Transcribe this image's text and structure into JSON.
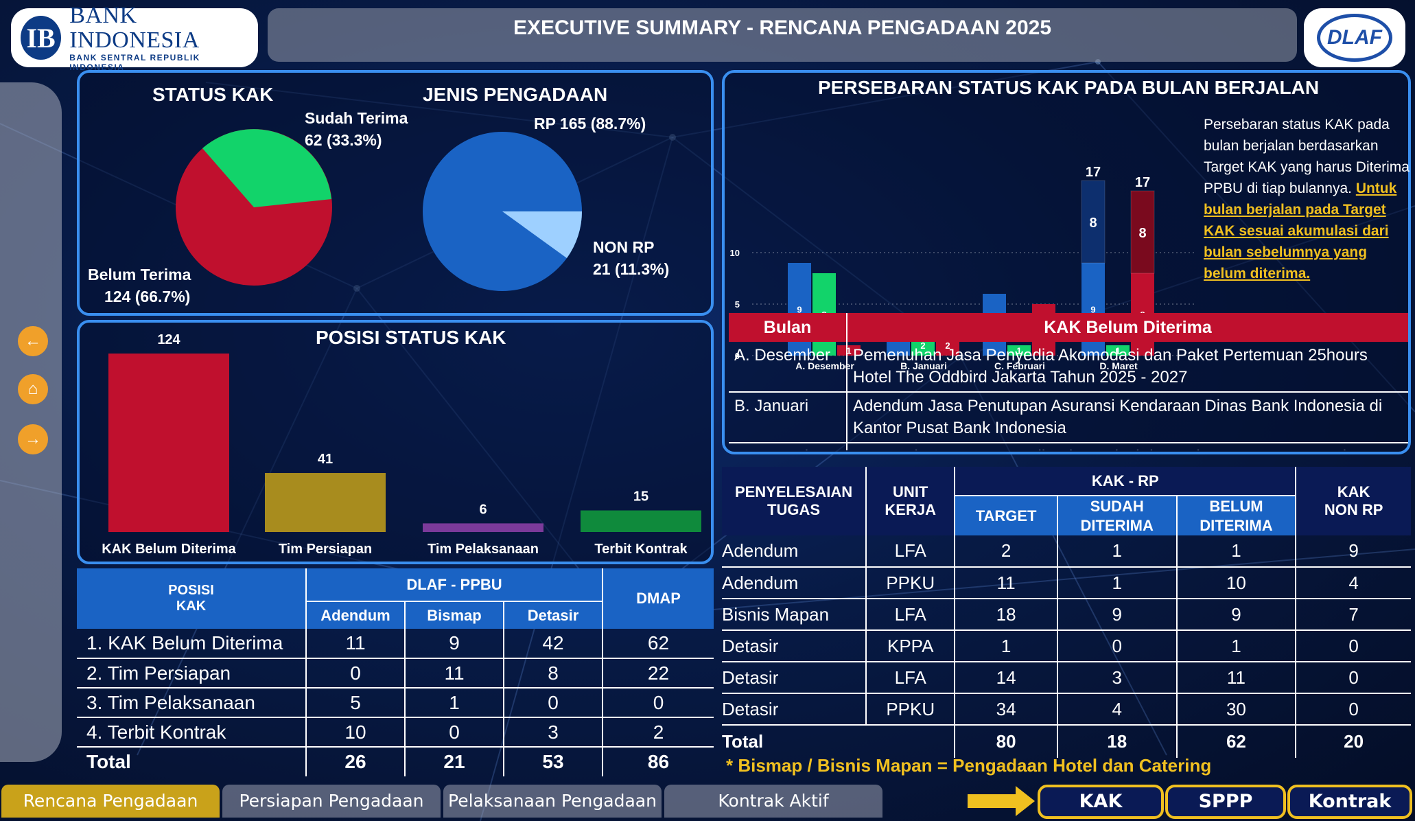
{
  "header": {
    "bank_name": "BANK INDONESIA",
    "bank_sub": "BANK SENTRAL REPUBLIK INDONESIA",
    "title": "EXECUTIVE SUMMARY - RENCANA PENGADAAN 2025",
    "dlaf_logo": "DLAF"
  },
  "nav": {
    "back_icon": "arrow-left-icon",
    "home_icon": "home-icon",
    "forward_icon": "arrow-right-icon"
  },
  "status_kak": {
    "title": "STATUS KAK",
    "sudah_label": "Sudah Terima",
    "sudah_value": "62 (33.3%)",
    "belum_label": "Belum Terima",
    "belum_value": "124 (66.7%)"
  },
  "jenis_pengadaan": {
    "title": "JENIS PENGADAAN",
    "rp_label": "RP 165 (88.7%)",
    "non_label": "NON RP",
    "non_value": "21 (11.3%)"
  },
  "posisi_status": {
    "title": "POSISI STATUS KAK",
    "bars": [
      {
        "label": "KAK Belum Diterima",
        "value": "124",
        "color": "#c0102e"
      },
      {
        "label": "Tim Persiapan",
        "value": "41",
        "color": "#a88c1e"
      },
      {
        "label": "Tim Pelaksanaan",
        "value": "6",
        "color": "#7b3a9a"
      },
      {
        "label": "Terbit Kontrak",
        "value": "15",
        "color": "#0f8a3c"
      }
    ]
  },
  "posisi_table": {
    "h_posisi": "POSISI\nKAK",
    "h_dlaf": "DLAF - PPBU",
    "h_adendum": "Adendum",
    "h_bismap": "Bismap",
    "h_detasir": "Detasir",
    "h_dmap": "DMAP",
    "rows": [
      {
        "name": "1. KAK Belum Diterima",
        "a": "11",
        "b": "9",
        "d": "42",
        "m": "62"
      },
      {
        "name": "2. Tim Persiapan",
        "a": "0",
        "b": "11",
        "d": "8",
        "m": "22"
      },
      {
        "name": "3. Tim Pelaksanaan",
        "a": "5",
        "b": "1",
        "d": "0",
        "m": "0"
      },
      {
        "name": "4. Terbit Kontrak",
        "a": "10",
        "b": "0",
        "d": "3",
        "m": "2"
      }
    ],
    "total": {
      "name": "Total",
      "a": "26",
      "b": "21",
      "d": "53",
      "m": "86"
    }
  },
  "persebaran": {
    "title": "PERSEBARAN STATUS KAK PADA BULAN BERJALAN",
    "desc_plain": "Persebaran status KAK pada bulan berjalan berdasarkan Target KAK yang harus Diterima PPBU di tiap bulannya.",
    "desc_highlight": "Untuk bulan berjalan pada Target KAK sesuai akumulasi dari bulan sebelumnya yang belum diterima."
  },
  "chart_data": {
    "type": "bar",
    "categories": [
      "A. Desember",
      "B. Januari",
      "C. Februari",
      "D. Maret"
    ],
    "series": [
      {
        "color": "#1a63c4",
        "values": [
          9,
          4,
          6,
          9
        ],
        "stacked_extra": [
          null,
          null,
          null,
          8
        ],
        "stack_total": [
          null,
          null,
          null,
          17
        ]
      },
      {
        "color": "#12d36a",
        "values": [
          8,
          2,
          1,
          1
        ]
      },
      {
        "color": "#c0102e",
        "values": [
          1,
          2,
          5,
          8
        ],
        "stacked_extra": [
          null,
          null,
          null,
          8
        ],
        "stack_total": [
          null,
          null,
          null,
          17
        ]
      }
    ],
    "y_ticks": [
      "0",
      "5",
      "10"
    ],
    "ylim": [
      0,
      17
    ],
    "grid": true,
    "legend": "none"
  },
  "bulan_table": {
    "h_bulan": "Bulan",
    "h_kak": "KAK Belum Diterima",
    "rows": [
      {
        "bulan": "A. Desember",
        "kak": "Pemenuhan Jasa Penyedia Akomodasi dan Paket Pertemuan 25hours Hotel The Oddbird Jakarta Tahun 2025 - 2027"
      },
      {
        "bulan": "B. Januari",
        "kak": "Adendum Jasa Penutupan Asuransi Kendaraan Dinas Bank Indonesia di Kantor Pusat Bank Indonesia"
      },
      {
        "bulan": "B. Januari",
        "kak": "Pemenuhan Jasa Penyedia Akomodasi dan Paket Pertemuan Hotel"
      }
    ]
  },
  "penyelesaian_table": {
    "h_tugas": "PENYELESAIAN\nTUGAS",
    "h_unit": "UNIT\nKERJA",
    "h_kakrp": "KAK - RP",
    "h_target": "TARGET",
    "h_sudah": "SUDAH\nDITERIMA",
    "h_belum": "BELUM\nDITERIMA",
    "h_nonrp": "KAK\nNON RP",
    "rows": [
      {
        "tugas": "Adendum",
        "unit": "LFA",
        "target": "2",
        "sudah": "1",
        "belum": "1",
        "non": "9"
      },
      {
        "tugas": "Adendum",
        "unit": "PPKU",
        "target": "11",
        "sudah": "1",
        "belum": "10",
        "non": "4"
      },
      {
        "tugas": "Bisnis Mapan",
        "unit": "LFA",
        "target": "18",
        "sudah": "9",
        "belum": "9",
        "non": "7"
      },
      {
        "tugas": "Detasir",
        "unit": "KPPA",
        "target": "1",
        "sudah": "0",
        "belum": "1",
        "non": "0"
      },
      {
        "tugas": "Detasir",
        "unit": "LFA",
        "target": "14",
        "sudah": "3",
        "belum": "11",
        "non": "0"
      },
      {
        "tugas": "Detasir",
        "unit": "PPKU",
        "target": "34",
        "sudah": "4",
        "belum": "30",
        "non": "0"
      }
    ],
    "total": {
      "tugas": "Total",
      "target": "80",
      "sudah": "18",
      "belum": "62",
      "non": "20"
    }
  },
  "footnote": "* Bismap / Bisnis Mapan = Pengadaan Hotel dan Catering",
  "bottom_tabs": [
    "Rencana Pengadaan",
    "Persiapan Pengadaan",
    "Pelaksanaan Pengadaan",
    "Kontrak Aktif"
  ],
  "bottom_buttons": [
    "KAK",
    "SPPP",
    "Kontrak"
  ],
  "colors": {
    "accent_blue": "#3a8ff0",
    "red": "#c0102e",
    "green": "#12d36a",
    "gold": "#f0c020"
  }
}
